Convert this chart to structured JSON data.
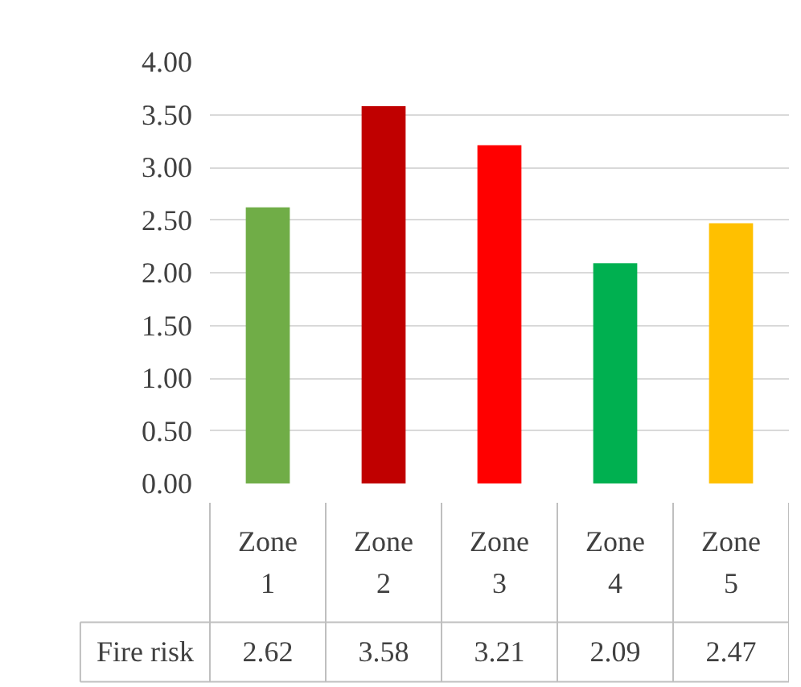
{
  "chart_data": {
    "type": "bar",
    "categories": [
      "Zone 1",
      "Zone 2",
      "Zone 3",
      "Zone 4",
      "Zone 5"
    ],
    "series": [
      {
        "name": "Fire risk",
        "colors": [
          "#70ad47",
          "#c00000",
          "#ff0000",
          "#00b050",
          "#ffc000"
        ],
        "values": [
          2.62,
          3.58,
          3.21,
          2.09,
          2.47
        ]
      }
    ],
    "data_labels": true,
    "ylim": [
      0,
      4
    ],
    "yticks": [
      {
        "value": 0,
        "label": "0.00"
      },
      {
        "value": 0.5,
        "label": "0.50"
      },
      {
        "value": 1,
        "label": "1.00"
      },
      {
        "value": 1.5,
        "label": "1.50"
      },
      {
        "value": 2,
        "label": "2.00"
      },
      {
        "value": 2.5,
        "label": "2.50"
      },
      {
        "value": 3,
        "label": "3.00"
      },
      {
        "value": 3.5,
        "label": "3.50"
      },
      {
        "value": 4,
        "label": "4.00"
      }
    ],
    "grid": "y"
  }
}
